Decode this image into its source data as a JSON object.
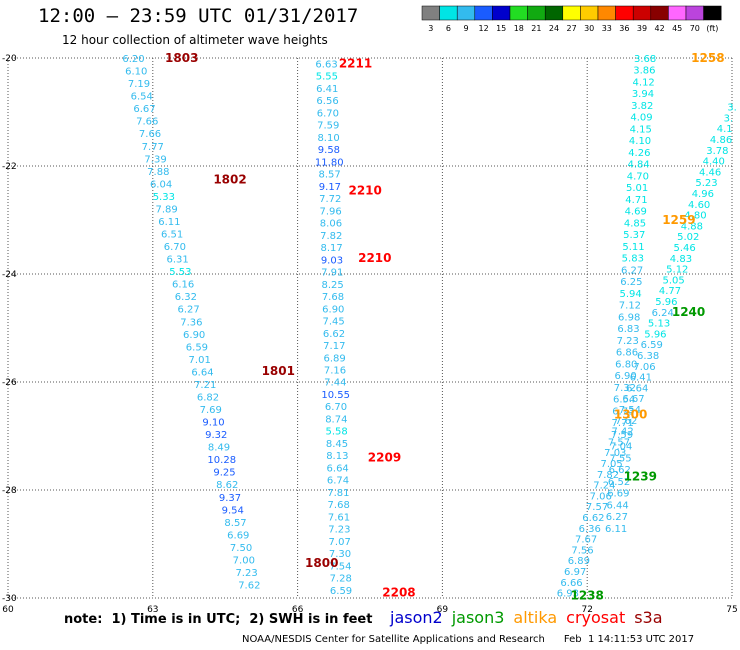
{
  "header": {
    "title": "12:00 – 23:59 UTC 01/31/2017",
    "subtitle": "12 hour collection of altimeter wave heights"
  },
  "colorbar": {
    "labels": [
      "3",
      "6",
      "9",
      "12",
      "15",
      "18",
      "21",
      "24",
      "27",
      "30",
      "33",
      "36",
      "39",
      "42",
      "45",
      "70",
      "(ft)"
    ],
    "colors": [
      "#808080",
      "#00e5e5",
      "#33bbee",
      "#1a5cff",
      "#0000cc",
      "#22dd22",
      "#11aa11",
      "#006600",
      "#ffff00",
      "#ffcc00",
      "#ff8800",
      "#ff0000",
      "#cc0000",
      "#880000",
      "#ff66ff",
      "#bb44dd",
      "#000000"
    ]
  },
  "footer": {
    "note": "note:  1) Time is in UTC;  2) SWH is in feet",
    "satellites": [
      {
        "name": "jason2",
        "color": "#0000cc"
      },
      {
        "name": "jason3",
        "color": "#009900"
      },
      {
        "name": "altika",
        "color": "#ff9900"
      },
      {
        "name": "cryosat",
        "color": "#ff0000"
      },
      {
        "name": "s3a",
        "color": "#990000"
      }
    ],
    "credit": "NOAA/NESDIS Center for Satellite Applications and Research      Feb  1 14:11:53 UTC 2017"
  },
  "chart_data": {
    "type": "scatter",
    "title": "12:00 – 23:59 UTC 01/31/2017",
    "subtitle": "12 hour collection of altimeter wave heights",
    "xlim": [
      60,
      75
    ],
    "ylim": [
      -30,
      -20
    ],
    "x_ticks": [
      "60",
      "63",
      "66",
      "69",
      "72",
      "75"
    ],
    "y_ticks": [
      "-20",
      "-22",
      "-24",
      "-26",
      "-28",
      "-30"
    ],
    "grid": true,
    "units": "feet",
    "tracks": [
      {
        "satellite": "s3a",
        "lon_start": 62.6,
        "lat_start": -20,
        "lon_end": 65.0,
        "lat_end": -29.75,
        "values": [
          "6.20",
          "6.10",
          "7.19",
          "6.54",
          "6.67",
          "7.66",
          "7.66",
          "7.77",
          "7.39",
          "7.88",
          "6.04",
          "5.33",
          "7.89",
          "6.11",
          "6.51",
          "6.70",
          "6.31",
          "5.53",
          "6.16",
          "6.32",
          "6.27",
          "7.36",
          "6.90",
          "6.59",
          "7.01",
          "6.64",
          "7.21",
          "6.82",
          "7.69",
          "9.10",
          "9.32",
          "8.49",
          "10.28",
          "9.25",
          "8.62",
          "9.37",
          "9.54",
          "8.57",
          "6.69",
          "7.50",
          "7.00",
          "7.23",
          "7.62"
        ],
        "pass_labels": [
          {
            "label": "1803",
            "lon": 63.6,
            "lat": -20.0
          },
          {
            "label": "1802",
            "lon": 64.6,
            "lat": -22.25
          },
          {
            "label": "1801",
            "lon": 65.6,
            "lat": -25.8
          },
          {
            "label": "1800",
            "lon": 66.5,
            "lat": -29.35
          }
        ]
      },
      {
        "satellite": "cryosat",
        "lon_start": 66.6,
        "lat_start": -20.1,
        "lon_end": 66.9,
        "lat_end": -29.85,
        "values": [
          "6.63",
          "5.55",
          "6.41",
          "6.56",
          "6.70",
          "7.59",
          "8.10",
          "9.58",
          "11.80",
          "8.57",
          "9.17",
          "7.72",
          "7.96",
          "8.06",
          "7.82",
          "8.17",
          "9.03",
          "7.91",
          "8.25",
          "7.68",
          "6.90",
          "7.45",
          "6.62",
          "7.17",
          "6.89",
          "7.16",
          "7.44",
          "10.55",
          "6.70",
          "8.74",
          "5.58",
          "8.45",
          "8.13",
          "6.64",
          "6.74",
          "7.81",
          "7.68",
          "7.61",
          "7.23",
          "7.07",
          "7.30",
          "7.54",
          "7.28",
          "6.59"
        ],
        "pass_labels": [
          {
            "label": "2211",
            "lon": 67.2,
            "lat": -20.1
          },
          {
            "label": "2210",
            "lon": 67.4,
            "lat": -22.45
          },
          {
            "label": "2210",
            "lon": 67.6,
            "lat": -23.7
          },
          {
            "label": "2209",
            "lon": 67.8,
            "lat": -27.4
          },
          {
            "label": "2208",
            "lon": 68.1,
            "lat": -29.9
          }
        ]
      },
      {
        "satellite": "altika",
        "lon_start": 73.2,
        "lat_start": -20,
        "lon_end": 72.6,
        "lat_end": -28.7,
        "values": [
          "3.68",
          "3.86",
          "4.12",
          "3.94",
          "3.82",
          "4.09",
          "4.15",
          "4.10",
          "4.26",
          "4.84",
          "4.70",
          "5.01",
          "4.71",
          "4.69",
          "4.85",
          "5.37",
          "5.11",
          "5.83",
          "6.27",
          "6.25",
          "5.94",
          "7.12",
          "6.98",
          "6.83",
          "7.23",
          "6.86",
          "6.80",
          "6.90",
          "7.32",
          "6.54",
          "6.73",
          "7.71",
          "7.59",
          "7.04",
          "7.55",
          "6.62",
          "6.52",
          "6.69",
          "6.44",
          "6.27",
          "6.11"
        ],
        "pass_labels": [
          {
            "label": "1258",
            "lon": 74.5,
            "lat": -20.0
          },
          {
            "label": "1259",
            "lon": 73.9,
            "lat": -23.0
          },
          {
            "label": "1300",
            "lon": 72.9,
            "lat": -26.6
          }
        ]
      },
      {
        "satellite": "jason3",
        "lon_start": 75.0,
        "lat_start": -20.9,
        "lon_end": 71.6,
        "lat_end": -29.9,
        "values": [
          "3.",
          "3.",
          "4.1",
          "4.86",
          "3.78",
          "4.40",
          "4.46",
          "5.23",
          "4.96",
          "4.60",
          "4.80",
          "4.88",
          "5.02",
          "5.46",
          "4.83",
          "5.12",
          "5.05",
          "4.77",
          "5.96",
          "6.24",
          "5.13",
          "5.96",
          "6.59",
          "6.38",
          "7.06",
          "6.41",
          "6.64",
          "6.67",
          "7.54",
          "7.62",
          "7.42",
          "7.57",
          "7.03",
          "7.05",
          "7.82",
          "7.24",
          "7.06",
          "7.57",
          "6.62",
          "6.36",
          "7.67",
          "7.56",
          "6.89",
          "6.97",
          "6.66",
          "6.93"
        ],
        "pass_labels": [
          {
            "label": "1240",
            "lon": 74.1,
            "lat": -24.7
          },
          {
            "label": "1239",
            "lon": 73.1,
            "lat": -27.75
          },
          {
            "label": "1238",
            "lon": 72.0,
            "lat": -29.95
          }
        ]
      }
    ]
  }
}
